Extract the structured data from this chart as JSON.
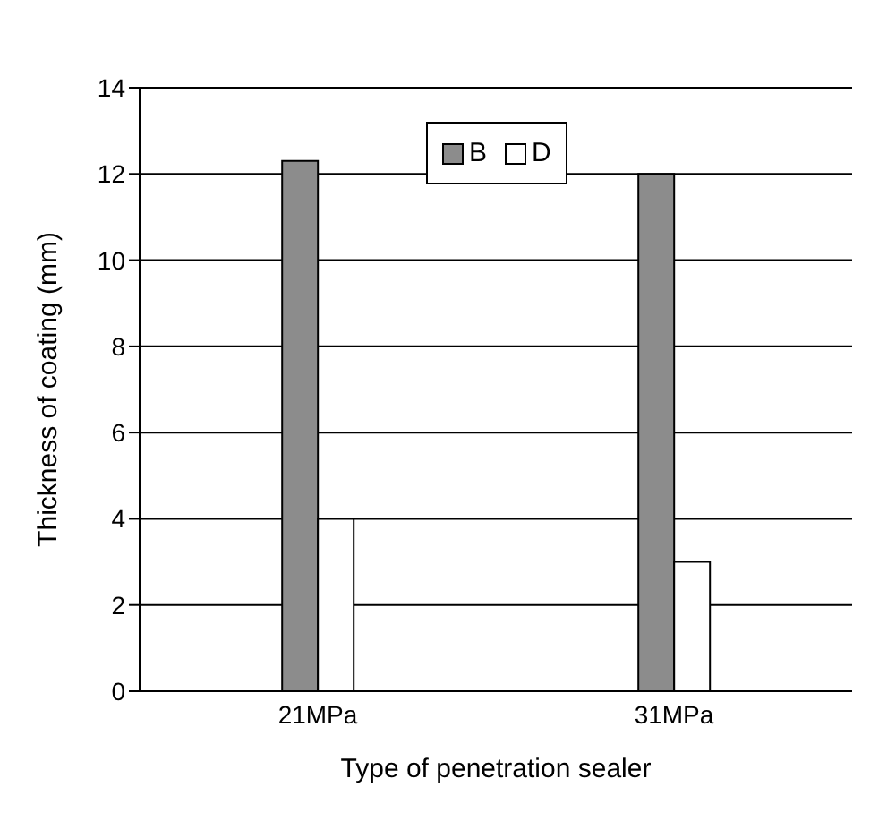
{
  "chart_data": {
    "type": "bar",
    "xlabel": "Type of penetration sealer",
    "ylabel": "Thickness of coating (mm)",
    "categories": [
      "21MPa",
      "31MPa"
    ],
    "series": [
      {
        "name": "B",
        "color": "#8c8c8c",
        "values": [
          12.3,
          12.0
        ]
      },
      {
        "name": "D",
        "color": "#ffffff",
        "values": [
          4.0,
          3.0
        ]
      }
    ],
    "ylim": [
      0,
      14
    ],
    "yticks": [
      0,
      2,
      4,
      6,
      8,
      10,
      12,
      14
    ],
    "grid": "y",
    "legend": "top"
  }
}
